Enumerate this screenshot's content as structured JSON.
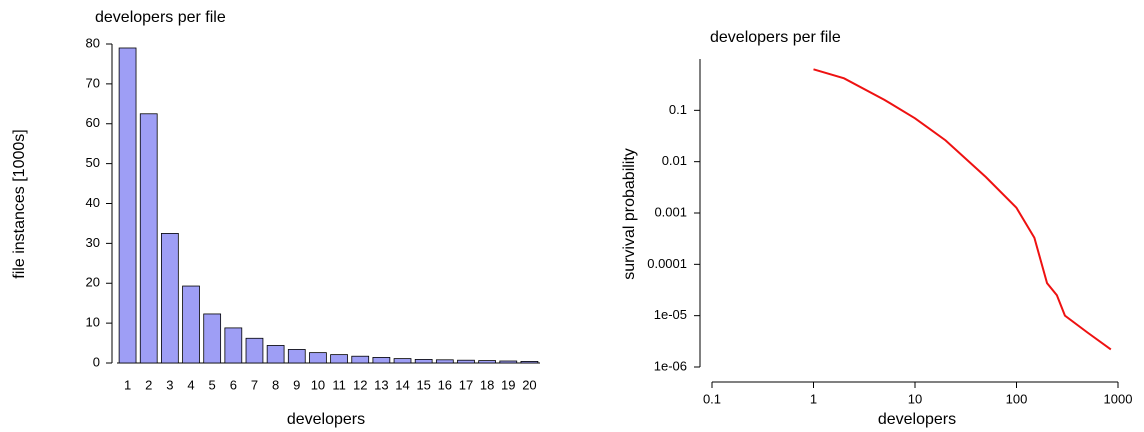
{
  "chart_data": [
    {
      "type": "bar",
      "title": "developers per file",
      "x_label": "developers",
      "y_label": "file instances [1000s]",
      "categories": [
        "1",
        "2",
        "3",
        "4",
        "5",
        "6",
        "7",
        "8",
        "9",
        "10",
        "11",
        "12",
        "13",
        "14",
        "15",
        "16",
        "17",
        "18",
        "19",
        "20"
      ],
      "values": [
        79,
        62.5,
        32.5,
        19.3,
        12.3,
        8.8,
        6.2,
        4.4,
        3.4,
        2.6,
        2.1,
        1.7,
        1.4,
        1.1,
        0.9,
        0.8,
        0.7,
        0.6,
        0.5,
        0.4
      ],
      "color": "#9e9ef5",
      "ylim": [
        0,
        80
      ],
      "yticks": [
        0,
        10,
        20,
        30,
        40,
        50,
        60,
        70,
        80
      ]
    },
    {
      "type": "line",
      "title": "developers per file",
      "x_label": "developers",
      "y_label": "survival probability",
      "log_x": true,
      "log_y": true,
      "x": [
        1,
        2,
        5,
        10,
        20,
        50,
        100,
        150,
        200,
        250,
        300,
        500,
        850
      ],
      "values": [
        0.63,
        0.42,
        0.16,
        0.07,
        0.026,
        0.005,
        0.00126,
        0.00033,
        4.3e-05,
        2.5e-05,
        1e-05,
        4.7e-06,
        2.2e-06
      ],
      "color": "#ee1111",
      "xlim": [
        0.1,
        1000
      ],
      "xticks": [
        0.1,
        1,
        10,
        100,
        1000
      ],
      "ylim": [
        1e-06,
        1
      ],
      "yticks": [
        {
          "value": 1e-06,
          "label": "1e-06"
        },
        {
          "value": 1e-05,
          "label": "1e-05"
        },
        0.0001,
        0.001,
        0.01,
        0.1
      ]
    }
  ]
}
